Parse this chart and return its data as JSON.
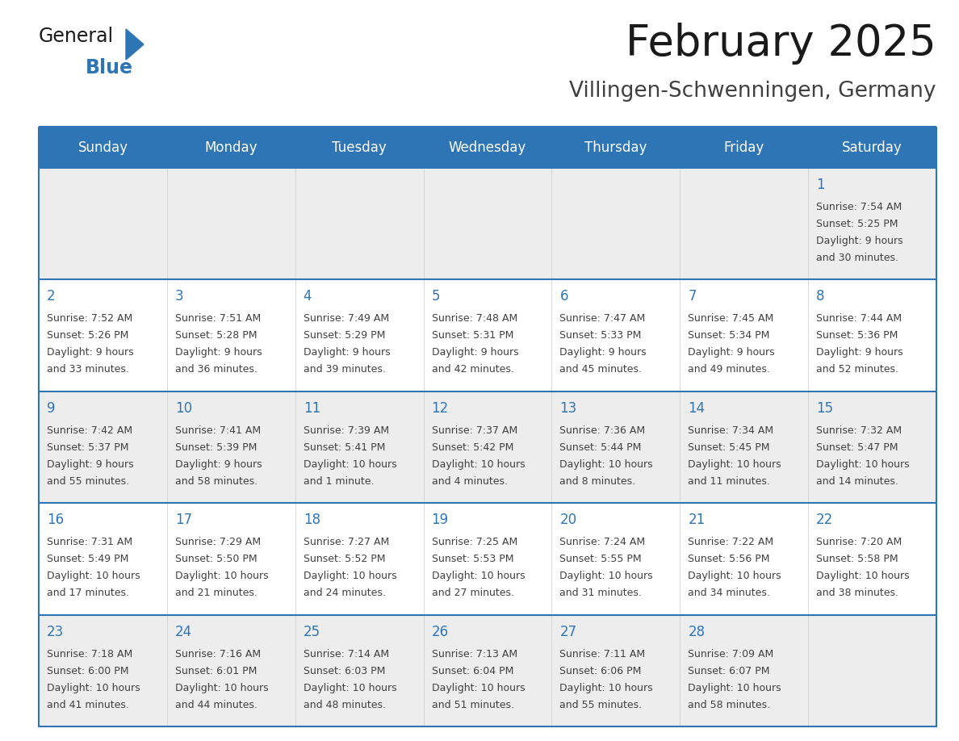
{
  "title": "February 2025",
  "subtitle": "Villingen-Schwenningen, Germany",
  "days_of_week": [
    "Sunday",
    "Monday",
    "Tuesday",
    "Wednesday",
    "Thursday",
    "Friday",
    "Saturday"
  ],
  "header_bg": "#2E75B6",
  "header_text_color": "#FFFFFF",
  "row0_bg": "#EDEDED",
  "row_bg": "#FFFFFF",
  "row_alt_bg": "#EDEDED",
  "border_color": "#2E75B6",
  "day_number_color": "#2E75B6",
  "info_text_color": "#404040",
  "title_color": "#1A1A1A",
  "subtitle_color": "#404040",
  "logo_color_general": "#1A1A1A",
  "logo_color_blue": "#2E75B6",
  "logo_triangle_color": "#2E75B6",
  "calendar_data": [
    [
      null,
      null,
      null,
      null,
      null,
      null,
      {
        "day": "1",
        "sunrise": "7:54 AM",
        "sunset": "5:25 PM",
        "daylight_line1": "9 hours",
        "daylight_line2": "and 30 minutes."
      }
    ],
    [
      {
        "day": "2",
        "sunrise": "7:52 AM",
        "sunset": "5:26 PM",
        "daylight_line1": "9 hours",
        "daylight_line2": "and 33 minutes."
      },
      {
        "day": "3",
        "sunrise": "7:51 AM",
        "sunset": "5:28 PM",
        "daylight_line1": "9 hours",
        "daylight_line2": "and 36 minutes."
      },
      {
        "day": "4",
        "sunrise": "7:49 AM",
        "sunset": "5:29 PM",
        "daylight_line1": "9 hours",
        "daylight_line2": "and 39 minutes."
      },
      {
        "day": "5",
        "sunrise": "7:48 AM",
        "sunset": "5:31 PM",
        "daylight_line1": "9 hours",
        "daylight_line2": "and 42 minutes."
      },
      {
        "day": "6",
        "sunrise": "7:47 AM",
        "sunset": "5:33 PM",
        "daylight_line1": "9 hours",
        "daylight_line2": "and 45 minutes."
      },
      {
        "day": "7",
        "sunrise": "7:45 AM",
        "sunset": "5:34 PM",
        "daylight_line1": "9 hours",
        "daylight_line2": "and 49 minutes."
      },
      {
        "day": "8",
        "sunrise": "7:44 AM",
        "sunset": "5:36 PM",
        "daylight_line1": "9 hours",
        "daylight_line2": "and 52 minutes."
      }
    ],
    [
      {
        "day": "9",
        "sunrise": "7:42 AM",
        "sunset": "5:37 PM",
        "daylight_line1": "9 hours",
        "daylight_line2": "and 55 minutes."
      },
      {
        "day": "10",
        "sunrise": "7:41 AM",
        "sunset": "5:39 PM",
        "daylight_line1": "9 hours",
        "daylight_line2": "and 58 minutes."
      },
      {
        "day": "11",
        "sunrise": "7:39 AM",
        "sunset": "5:41 PM",
        "daylight_line1": "10 hours",
        "daylight_line2": "and 1 minute."
      },
      {
        "day": "12",
        "sunrise": "7:37 AM",
        "sunset": "5:42 PM",
        "daylight_line1": "10 hours",
        "daylight_line2": "and 4 minutes."
      },
      {
        "day": "13",
        "sunrise": "7:36 AM",
        "sunset": "5:44 PM",
        "daylight_line1": "10 hours",
        "daylight_line2": "and 8 minutes."
      },
      {
        "day": "14",
        "sunrise": "7:34 AM",
        "sunset": "5:45 PM",
        "daylight_line1": "10 hours",
        "daylight_line2": "and 11 minutes."
      },
      {
        "day": "15",
        "sunrise": "7:32 AM",
        "sunset": "5:47 PM",
        "daylight_line1": "10 hours",
        "daylight_line2": "and 14 minutes."
      }
    ],
    [
      {
        "day": "16",
        "sunrise": "7:31 AM",
        "sunset": "5:49 PM",
        "daylight_line1": "10 hours",
        "daylight_line2": "and 17 minutes."
      },
      {
        "day": "17",
        "sunrise": "7:29 AM",
        "sunset": "5:50 PM",
        "daylight_line1": "10 hours",
        "daylight_line2": "and 21 minutes."
      },
      {
        "day": "18",
        "sunrise": "7:27 AM",
        "sunset": "5:52 PM",
        "daylight_line1": "10 hours",
        "daylight_line2": "and 24 minutes."
      },
      {
        "day": "19",
        "sunrise": "7:25 AM",
        "sunset": "5:53 PM",
        "daylight_line1": "10 hours",
        "daylight_line2": "and 27 minutes."
      },
      {
        "day": "20",
        "sunrise": "7:24 AM",
        "sunset": "5:55 PM",
        "daylight_line1": "10 hours",
        "daylight_line2": "and 31 minutes."
      },
      {
        "day": "21",
        "sunrise": "7:22 AM",
        "sunset": "5:56 PM",
        "daylight_line1": "10 hours",
        "daylight_line2": "and 34 minutes."
      },
      {
        "day": "22",
        "sunrise": "7:20 AM",
        "sunset": "5:58 PM",
        "daylight_line1": "10 hours",
        "daylight_line2": "and 38 minutes."
      }
    ],
    [
      {
        "day": "23",
        "sunrise": "7:18 AM",
        "sunset": "6:00 PM",
        "daylight_line1": "10 hours",
        "daylight_line2": "and 41 minutes."
      },
      {
        "day": "24",
        "sunrise": "7:16 AM",
        "sunset": "6:01 PM",
        "daylight_line1": "10 hours",
        "daylight_line2": "and 44 minutes."
      },
      {
        "day": "25",
        "sunrise": "7:14 AM",
        "sunset": "6:03 PM",
        "daylight_line1": "10 hours",
        "daylight_line2": "and 48 minutes."
      },
      {
        "day": "26",
        "sunrise": "7:13 AM",
        "sunset": "6:04 PM",
        "daylight_line1": "10 hours",
        "daylight_line2": "and 51 minutes."
      },
      {
        "day": "27",
        "sunrise": "7:11 AM",
        "sunset": "6:06 PM",
        "daylight_line1": "10 hours",
        "daylight_line2": "and 55 minutes."
      },
      {
        "day": "28",
        "sunrise": "7:09 AM",
        "sunset": "6:07 PM",
        "daylight_line1": "10 hours",
        "daylight_line2": "and 58 minutes."
      },
      null
    ]
  ]
}
